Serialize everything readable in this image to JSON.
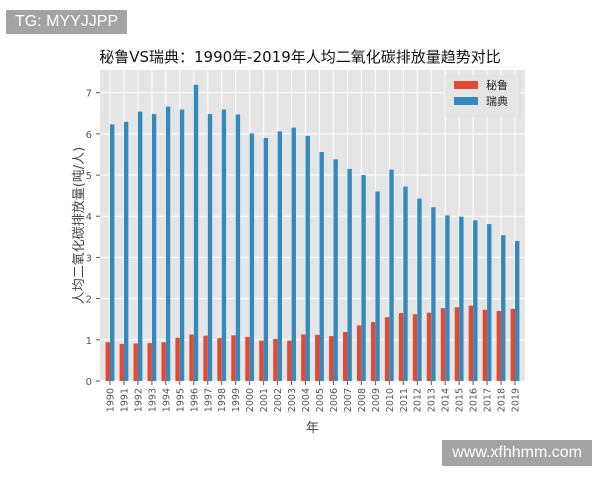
{
  "watermarks": {
    "top_left": "TG: MYYJJPP",
    "bottom_right": "www.xfhhmm.com"
  },
  "chart_data": {
    "type": "bar",
    "title": "秘鲁VS瑞典：1990年-2019年人均二氧化碳排放量趋势对比",
    "xlabel": "年",
    "ylabel": "人均二氧化碳排放量(吨/人)",
    "ylim": [
      0,
      7.55
    ],
    "yticks": [
      0,
      1,
      2,
      3,
      4,
      5,
      6,
      7
    ],
    "grid": true,
    "legend_position": "top-right",
    "categories": [
      "1990",
      "1991",
      "1992",
      "1993",
      "1994",
      "1995",
      "1996",
      "1997",
      "1998",
      "1999",
      "2000",
      "2001",
      "2002",
      "2003",
      "2004",
      "2005",
      "2006",
      "2007",
      "2008",
      "2009",
      "2010",
      "2011",
      "2012",
      "2013",
      "2014",
      "2015",
      "2016",
      "2017",
      "2018",
      "2019"
    ],
    "series": [
      {
        "name": "秘鲁",
        "color": "#E24A33",
        "values": [
          0.94,
          0.9,
          0.91,
          0.92,
          0.94,
          1.05,
          1.13,
          1.1,
          1.04,
          1.11,
          1.07,
          0.98,
          1.02,
          0.98,
          1.13,
          1.12,
          1.09,
          1.19,
          1.35,
          1.43,
          1.55,
          1.65,
          1.62,
          1.66,
          1.77,
          1.79,
          1.83,
          1.73,
          1.7,
          1.75
        ]
      },
      {
        "name": "瑞典",
        "color": "#348ABD",
        "values": [
          6.23,
          6.29,
          6.54,
          6.48,
          6.66,
          6.59,
          7.19,
          6.48,
          6.59,
          6.47,
          6.01,
          5.9,
          6.06,
          6.15,
          5.95,
          5.56,
          5.38,
          5.15,
          5.0,
          4.6,
          5.13,
          4.72,
          4.43,
          4.22,
          4.02,
          3.99,
          3.9,
          3.81,
          3.54,
          3.4
        ]
      }
    ]
  }
}
